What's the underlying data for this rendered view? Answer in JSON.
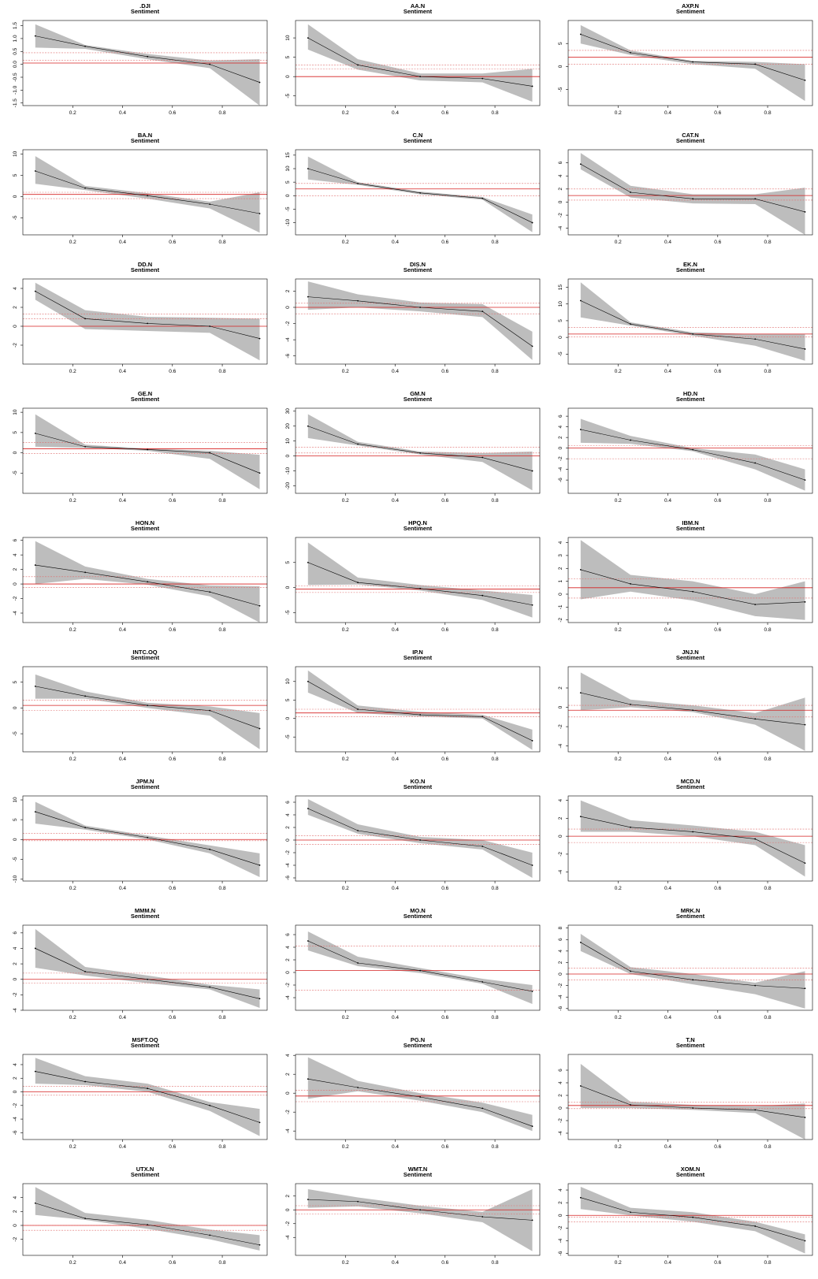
{
  "figure": {
    "subtitle": "Sentiment",
    "x_ticks": [
      0.2,
      0.4,
      0.6,
      0.8
    ],
    "x_tick_labels": [
      "0.2",
      "0.4",
      "0.6",
      "0.8"
    ],
    "colors": {
      "band": "#bdbdbd",
      "line": "#000000",
      "ref_main": "#d62020",
      "ref_dashed": "#e07070",
      "frame": "#000000"
    }
  },
  "chart_data": [
    {
      "type": "area",
      "title": ".DJI",
      "subtitle": "Sentiment",
      "x": [
        0.05,
        0.25,
        0.5,
        0.75,
        0.95
      ],
      "y": [
        1.1,
        0.7,
        0.3,
        0.0,
        -0.7
      ],
      "lower": [
        0.65,
        0.6,
        0.2,
        -0.15,
        -1.6
      ],
      "upper": [
        1.55,
        0.75,
        0.4,
        0.15,
        0.2
      ],
      "ylim": [
        -1.6,
        1.7
      ],
      "yticks": [
        -1.5,
        -1.0,
        -0.5,
        0.0,
        0.5,
        1.0,
        1.5
      ],
      "ref_main": 0.05,
      "ref_dashed": [
        0.45,
        0.15
      ]
    },
    {
      "type": "area",
      "title": "AA.N",
      "subtitle": "Sentiment",
      "x": [
        0.05,
        0.25,
        0.5,
        0.75,
        0.95
      ],
      "y": [
        10,
        3,
        0,
        -0.5,
        -2.5
      ],
      "lower": [
        7,
        1.8,
        -1.0,
        -1.5,
        -6.5
      ],
      "upper": [
        13.5,
        4.5,
        0.8,
        0.8,
        2
      ],
      "ylim": [
        -7.5,
        14.5
      ],
      "yticks": [
        -5,
        0,
        5,
        10
      ],
      "ref_main": 0,
      "ref_dashed": [
        3,
        2
      ]
    },
    {
      "type": "area",
      "title": "AXP.N",
      "subtitle": "Sentiment",
      "x": [
        0.05,
        0.25,
        0.5,
        0.75,
        0.95
      ],
      "y": [
        7,
        3,
        1,
        0.5,
        -3
      ],
      "lower": [
        5,
        2.5,
        0.5,
        -0.5,
        -7.5
      ],
      "upper": [
        9,
        3.5,
        1.2,
        1.0,
        0.5
      ],
      "ylim": [
        -8.5,
        10
      ],
      "yticks": [
        -5,
        0,
        5
      ],
      "ref_main": 2,
      "ref_dashed": [
        3.5,
        0.5
      ]
    },
    {
      "type": "area",
      "title": "BA.N",
      "subtitle": "Sentiment",
      "x": [
        0.05,
        0.25,
        0.5,
        0.75,
        0.95
      ],
      "y": [
        6,
        2,
        0.2,
        -1.8,
        -4
      ],
      "lower": [
        3,
        1.5,
        -0.5,
        -2.8,
        -8.5
      ],
      "upper": [
        9.5,
        2.5,
        0.8,
        -1.2,
        1
      ],
      "ylim": [
        -9,
        11
      ],
      "yticks": [
        -5,
        0,
        5,
        10
      ],
      "ref_main": 0.5,
      "ref_dashed": [
        1,
        -0.5
      ]
    },
    {
      "type": "area",
      "title": "C.N",
      "subtitle": "Sentiment",
      "x": [
        0.05,
        0.25,
        0.5,
        0.75,
        0.95
      ],
      "y": [
        10,
        4.5,
        1,
        -1,
        -10
      ],
      "lower": [
        6,
        4,
        0.5,
        -1.5,
        -13.5
      ],
      "upper": [
        14.5,
        5,
        1.5,
        -0.5,
        -7
      ],
      "ylim": [
        -14.5,
        17
      ],
      "yticks": [
        -10,
        -5,
        0,
        5,
        10,
        15
      ],
      "ref_main": 2.5,
      "ref_dashed": [
        4.5,
        0
      ]
    },
    {
      "type": "area",
      "title": "CAT.N",
      "subtitle": "Sentiment",
      "x": [
        0.05,
        0.25,
        0.5,
        0.75,
        0.95
      ],
      "y": [
        5.8,
        1.5,
        0.5,
        0.5,
        -1.5
      ],
      "lower": [
        5,
        0.7,
        -0.2,
        -0.3,
        -5
      ],
      "upper": [
        7.5,
        2.5,
        1.2,
        1.2,
        2.2
      ],
      "ylim": [
        -5,
        8
      ],
      "yticks": [
        -4,
        -2,
        0,
        2,
        4,
        6
      ],
      "ref_main": 1,
      "ref_dashed": [
        2,
        0.3
      ]
    },
    {
      "type": "area",
      "title": "DD.N",
      "subtitle": "Sentiment",
      "x": [
        0.05,
        0.25,
        0.5,
        0.75,
        0.95
      ],
      "y": [
        3.7,
        0.8,
        0.3,
        0,
        -1.3
      ],
      "lower": [
        2.8,
        -0.3,
        -0.5,
        -0.7,
        -3.6
      ],
      "upper": [
        4.6,
        1.7,
        1.0,
        0.9,
        0.8
      ],
      "ylim": [
        -4,
        5
      ],
      "yticks": [
        -2,
        0,
        2,
        4
      ],
      "ref_main": 0,
      "ref_dashed": [
        1.3,
        0.8
      ]
    },
    {
      "type": "area",
      "title": "DIS.N",
      "subtitle": "Sentiment",
      "x": [
        0.05,
        0.25,
        0.5,
        0.75,
        0.95
      ],
      "y": [
        1.3,
        0.8,
        0,
        -0.5,
        -4.8
      ],
      "lower": [
        -0.3,
        0,
        -0.5,
        -1.2,
        -6.5
      ],
      "upper": [
        3.2,
        1.6,
        0.6,
        0.4,
        -3
      ],
      "ylim": [
        -7,
        3.5
      ],
      "yticks": [
        -6,
        -4,
        -2,
        0,
        2
      ],
      "ref_main": 0,
      "ref_dashed": [
        0.5,
        -0.8
      ]
    },
    {
      "type": "area",
      "title": "EK.N",
      "subtitle": "Sentiment",
      "x": [
        0.05,
        0.25,
        0.5,
        0.75,
        0.95
      ],
      "y": [
        11,
        4,
        1,
        -0.5,
        -3.5
      ],
      "lower": [
        6,
        3.5,
        0.5,
        -2.5,
        -7
      ],
      "upper": [
        16.5,
        4.5,
        1.5,
        1,
        1
      ],
      "ylim": [
        -8,
        17.5
      ],
      "yticks": [
        -5,
        0,
        5,
        10,
        15
      ],
      "ref_main": 1,
      "ref_dashed": [
        3,
        0.2
      ]
    },
    {
      "type": "area",
      "title": "GE.N",
      "subtitle": "Sentiment",
      "x": [
        0.05,
        0.25,
        0.5,
        0.75,
        0.95
      ],
      "y": [
        4.8,
        1.5,
        0.8,
        0,
        -5
      ],
      "lower": [
        1.5,
        1.2,
        0.5,
        -1.5,
        -9
      ],
      "upper": [
        9.5,
        2,
        1,
        0.5,
        -0.5
      ],
      "ylim": [
        -10,
        11
      ],
      "yticks": [
        -5,
        0,
        5,
        10
      ],
      "ref_main": 1,
      "ref_dashed": [
        2.5,
        -0.2
      ]
    },
    {
      "type": "area",
      "title": "GM.N",
      "subtitle": "Sentiment",
      "x": [
        0.05,
        0.25,
        0.5,
        0.75,
        0.95
      ],
      "y": [
        20,
        8,
        2,
        -1,
        -10
      ],
      "lower": [
        12,
        7,
        1,
        -4,
        -23
      ],
      "upper": [
        28,
        9.5,
        3,
        2,
        3
      ],
      "ylim": [
        -25,
        32
      ],
      "yticks": [
        -20,
        -10,
        0,
        10,
        20,
        30
      ],
      "ref_main": 0,
      "ref_dashed": [
        6,
        2
      ]
    },
    {
      "type": "area",
      "title": "HD.N",
      "subtitle": "Sentiment",
      "x": [
        0.05,
        0.25,
        0.5,
        0.75,
        0.95
      ],
      "y": [
        3.5,
        1.5,
        -0.3,
        -2.8,
        -6
      ],
      "lower": [
        1,
        0.8,
        -0.6,
        -4,
        -8
      ],
      "upper": [
        5.5,
        2.3,
        0,
        -1.2,
        -4
      ],
      "ylim": [
        -8.5,
        7.5
      ],
      "yticks": [
        -6,
        -4,
        -2,
        0,
        2,
        4,
        6
      ],
      "ref_main": 0,
      "ref_dashed": [
        0.5,
        -2
      ]
    },
    {
      "type": "area",
      "title": "HON.N",
      "subtitle": "Sentiment",
      "x": [
        0.05,
        0.25,
        0.5,
        0.75,
        0.95
      ],
      "y": [
        2.6,
        1.6,
        0.3,
        -1.1,
        -3
      ],
      "lower": [
        0,
        0.7,
        -0.1,
        -1.7,
        -5.3
      ],
      "upper": [
        5.9,
        2.4,
        0.7,
        -0.2,
        -0.3
      ],
      "ylim": [
        -5.3,
        6.4
      ],
      "yticks": [
        -4,
        -2,
        0,
        2,
        4,
        6
      ],
      "ref_main": 0,
      "ref_dashed": [
        1,
        -0.5
      ]
    },
    {
      "type": "area",
      "title": "HPQ.N",
      "subtitle": "Sentiment",
      "x": [
        0.05,
        0.25,
        0.5,
        0.75,
        0.95
      ],
      "y": [
        5,
        1,
        -0.2,
        -1.6,
        -3.5
      ],
      "lower": [
        0.5,
        0.6,
        -0.6,
        -2.5,
        -6
      ],
      "upper": [
        9,
        2,
        0.5,
        -0.6,
        -1.5
      ],
      "ylim": [
        -7,
        10
      ],
      "yticks": [
        -5,
        0,
        5
      ],
      "ref_main": -0.3,
      "ref_dashed": [
        0.3,
        -1
      ]
    },
    {
      "type": "area",
      "title": "IBM.N",
      "subtitle": "Sentiment",
      "x": [
        0.05,
        0.25,
        0.5,
        0.75,
        0.95
      ],
      "y": [
        1.9,
        0.8,
        0.2,
        -0.8,
        -0.6
      ],
      "lower": [
        -0.4,
        0.2,
        -0.5,
        -1.7,
        -2
      ],
      "upper": [
        4.2,
        1.5,
        1,
        0,
        1
      ],
      "ylim": [
        -2.2,
        4.4
      ],
      "yticks": [
        -2,
        -1,
        0,
        1,
        2,
        3,
        4
      ],
      "ref_main": 0.5,
      "ref_dashed": [
        1.2,
        -0.3
      ]
    },
    {
      "type": "area",
      "title": "INTC.OQ",
      "subtitle": "Sentiment",
      "x": [
        0.05,
        0.25,
        0.5,
        0.75,
        0.95
      ],
      "y": [
        4.2,
        2.3,
        0.5,
        -0.5,
        -4
      ],
      "lower": [
        1.8,
        1.8,
        0,
        -1.5,
        -8
      ],
      "upper": [
        6.5,
        3.2,
        1,
        0.3,
        -1
      ],
      "ylim": [
        -8.5,
        8
      ],
      "yticks": [
        -5,
        0,
        5
      ],
      "ref_main": 0.5,
      "ref_dashed": [
        1.5,
        -0.5
      ]
    },
    {
      "type": "area",
      "title": "IP.N",
      "subtitle": "Sentiment",
      "x": [
        0.05,
        0.25,
        0.5,
        0.75,
        0.95
      ],
      "y": [
        10,
        2.5,
        1,
        0.5,
        -6
      ],
      "lower": [
        7,
        1.5,
        0.5,
        0,
        -8.5
      ],
      "upper": [
        13,
        3.5,
        1.8,
        1,
        -3
      ],
      "ylim": [
        -9,
        14
      ],
      "yticks": [
        -5,
        0,
        5,
        10
      ],
      "ref_main": 1.5,
      "ref_dashed": [
        2.5,
        0.5
      ]
    },
    {
      "type": "area",
      "title": "JNJ.N",
      "subtitle": "Sentiment",
      "x": [
        0.05,
        0.25,
        0.5,
        0.75,
        0.95
      ],
      "y": [
        1.5,
        0.3,
        -0.3,
        -1.2,
        -1.8
      ],
      "lower": [
        -0.3,
        0,
        -0.5,
        -1.8,
        -4.5
      ],
      "upper": [
        3.6,
        0.8,
        0.2,
        -0.6,
        1
      ],
      "ylim": [
        -4.6,
        4.2
      ],
      "yticks": [
        -4,
        -2,
        0,
        2
      ],
      "ref_main": -0.3,
      "ref_dashed": [
        0.2,
        -1
      ]
    },
    {
      "type": "area",
      "title": "JPM.N",
      "subtitle": "Sentiment",
      "x": [
        0.05,
        0.25,
        0.5,
        0.75,
        0.95
      ],
      "y": [
        7,
        3,
        0.5,
        -2.5,
        -6.5
      ],
      "lower": [
        4,
        2.5,
        0,
        -3.5,
        -9.5
      ],
      "upper": [
        9.5,
        3.5,
        1,
        -1.5,
        -3.5
      ],
      "ylim": [
        -10.5,
        11
      ],
      "yticks": [
        -10,
        -5,
        0,
        5,
        10
      ],
      "ref_main": 0,
      "ref_dashed": [
        1.5,
        -0.3
      ]
    },
    {
      "type": "area",
      "title": "KO.N",
      "subtitle": "Sentiment",
      "x": [
        0.05,
        0.25,
        0.5,
        0.75,
        0.95
      ],
      "y": [
        5,
        1.5,
        0,
        -1,
        -4
      ],
      "lower": [
        4,
        1,
        -0.5,
        -1.5,
        -6
      ],
      "upper": [
        6.5,
        2.5,
        0.5,
        0,
        -2
      ],
      "ylim": [
        -6.5,
        7
      ],
      "yticks": [
        -6,
        -4,
        -2,
        0,
        2,
        4,
        6
      ],
      "ref_main": 0,
      "ref_dashed": [
        0.7,
        -0.7
      ]
    },
    {
      "type": "area",
      "title": "MCD.N",
      "subtitle": "Sentiment",
      "x": [
        0.05,
        0.25,
        0.5,
        0.75,
        0.95
      ],
      "y": [
        2.2,
        1,
        0.5,
        -0.3,
        -3
      ],
      "lower": [
        0.5,
        0.5,
        0,
        -1,
        -4.5
      ],
      "upper": [
        4,
        1.8,
        1.2,
        0.5,
        -1
      ],
      "ylim": [
        -5,
        4.5
      ],
      "yticks": [
        -4,
        -2,
        0,
        2,
        4
      ],
      "ref_main": 0,
      "ref_dashed": [
        0.8,
        -0.7
      ]
    },
    {
      "type": "area",
      "title": "MMM.N",
      "subtitle": "Sentiment",
      "x": [
        0.05,
        0.25,
        0.5,
        0.75,
        0.95
      ],
      "y": [
        4,
        1,
        0,
        -1,
        -2.5
      ],
      "lower": [
        1.5,
        0.5,
        -0.5,
        -1.3,
        -3.7
      ],
      "upper": [
        6.5,
        1.6,
        0.5,
        -0.7,
        -1.3
      ],
      "ylim": [
        -4,
        7
      ],
      "yticks": [
        -4,
        -2,
        0,
        2,
        4,
        6
      ],
      "ref_main": 0,
      "ref_dashed": [
        0.8,
        -0.5
      ]
    },
    {
      "type": "area",
      "title": "MO.N",
      "subtitle": "Sentiment",
      "x": [
        0.05,
        0.25,
        0.5,
        0.75,
        0.95
      ],
      "y": [
        5,
        1.5,
        0.3,
        -1.5,
        -3
      ],
      "lower": [
        3.5,
        1,
        -0.1,
        -1.8,
        -5
      ],
      "upper": [
        6.5,
        2.5,
        0.7,
        -1,
        -2
      ],
      "ylim": [
        -6,
        7.5
      ],
      "yticks": [
        -4,
        -2,
        0,
        2,
        4,
        6
      ],
      "ref_main": 0.3,
      "ref_dashed": [
        4.2,
        -2.8
      ]
    },
    {
      "type": "area",
      "title": "MRK.N",
      "subtitle": "Sentiment",
      "x": [
        0.05,
        0.25,
        0.5,
        0.75,
        0.95
      ],
      "y": [
        5.5,
        0.5,
        -1,
        -2,
        -2.5
      ],
      "lower": [
        4,
        0,
        -1.8,
        -3.5,
        -6
      ],
      "upper": [
        7,
        1.2,
        0,
        -1.5,
        0.5
      ],
      "ylim": [
        -6.3,
        8.5
      ],
      "yticks": [
        -6,
        -4,
        -2,
        0,
        2,
        4,
        6,
        8
      ],
      "ref_main": 0,
      "ref_dashed": [
        1,
        -1
      ]
    },
    {
      "type": "area",
      "title": "MSFT.OQ",
      "subtitle": "Sentiment",
      "x": [
        0.05,
        0.25,
        0.5,
        0.75,
        0.95
      ],
      "y": [
        3,
        1.5,
        0.5,
        -2,
        -4.5
      ],
      "lower": [
        1.2,
        1,
        0,
        -2.8,
        -6.5
      ],
      "upper": [
        5,
        2.3,
        1.2,
        -1.5,
        -2.5
      ],
      "ylim": [
        -7,
        5.5
      ],
      "yticks": [
        -6,
        -4,
        -2,
        0,
        2,
        4
      ],
      "ref_main": 0,
      "ref_dashed": [
        0.8,
        -0.5
      ]
    },
    {
      "type": "area",
      "title": "PG.N",
      "subtitle": "Sentiment",
      "x": [
        0.05,
        0.25,
        0.5,
        0.75,
        0.95
      ],
      "y": [
        1.5,
        0.6,
        -0.4,
        -1.6,
        -3.5
      ],
      "lower": [
        -0.6,
        0.2,
        -0.8,
        -2,
        -4
      ],
      "upper": [
        3.8,
        1.3,
        0,
        -1,
        -2.3
      ],
      "ylim": [
        -4.9,
        4.1
      ],
      "yticks": [
        -4,
        -2,
        0,
        2,
        4
      ],
      "ref_main": -0.3,
      "ref_dashed": [
        0.3,
        -0.9
      ]
    },
    {
      "type": "area",
      "title": "T.N",
      "subtitle": "Sentiment",
      "x": [
        0.05,
        0.25,
        0.5,
        0.75,
        0.95
      ],
      "y": [
        3.5,
        0.5,
        0,
        -0.3,
        -1.5
      ],
      "lower": [
        0,
        0,
        -0.3,
        -0.8,
        -5
      ],
      "upper": [
        7,
        1,
        0.5,
        0.3,
        0.7
      ],
      "ylim": [
        -5,
        8.5
      ],
      "yticks": [
        -4,
        -2,
        0,
        2,
        4,
        6
      ],
      "ref_main": 0.4,
      "ref_dashed": [
        0.9,
        -0.1
      ]
    },
    {
      "type": "area",
      "title": "UTX.N",
      "subtitle": "Sentiment",
      "x": [
        0.05,
        0.25,
        0.5,
        0.75,
        0.95
      ],
      "y": [
        3.2,
        1,
        0.1,
        -1.4,
        -2.8
      ],
      "lower": [
        1.5,
        0.8,
        -0.5,
        -2,
        -3.6
      ],
      "upper": [
        5.5,
        1.8,
        0.8,
        -0.6,
        -1.4
      ],
      "ylim": [
        -4.3,
        6
      ],
      "yticks": [
        -2,
        0,
        2,
        4
      ],
      "ref_main": 0,
      "ref_dashed": [
        0,
        -0.7
      ]
    },
    {
      "type": "area",
      "title": "WMT.N",
      "subtitle": "Sentiment",
      "x": [
        0.05,
        0.25,
        0.5,
        0.75,
        0.95
      ],
      "y": [
        1.5,
        1.2,
        0,
        -1,
        -1.5
      ],
      "lower": [
        0.3,
        0.5,
        -0.5,
        -1.8,
        -6
      ],
      "upper": [
        3,
        1.8,
        0.6,
        -0.3,
        3
      ],
      "ylim": [
        -6.6,
        3.8
      ],
      "yticks": [
        -4,
        -2,
        0,
        2
      ],
      "ref_main": 0,
      "ref_dashed": [
        0.6,
        -0.6
      ]
    },
    {
      "type": "area",
      "title": "XOM.N",
      "subtitle": "Sentiment",
      "x": [
        0.05,
        0.25,
        0.5,
        0.75,
        0.95
      ],
      "y": [
        2.8,
        0.5,
        -0.3,
        -1.7,
        -4
      ],
      "lower": [
        1,
        0,
        -1,
        -2.5,
        -6
      ],
      "upper": [
        4.5,
        1.2,
        0.5,
        -1,
        -3
      ],
      "ylim": [
        -6.3,
        5
      ],
      "yticks": [
        -6,
        -4,
        -2,
        0,
        2,
        4
      ],
      "ref_main": 0,
      "ref_dashed": [
        -0.3,
        -1
      ]
    }
  ]
}
